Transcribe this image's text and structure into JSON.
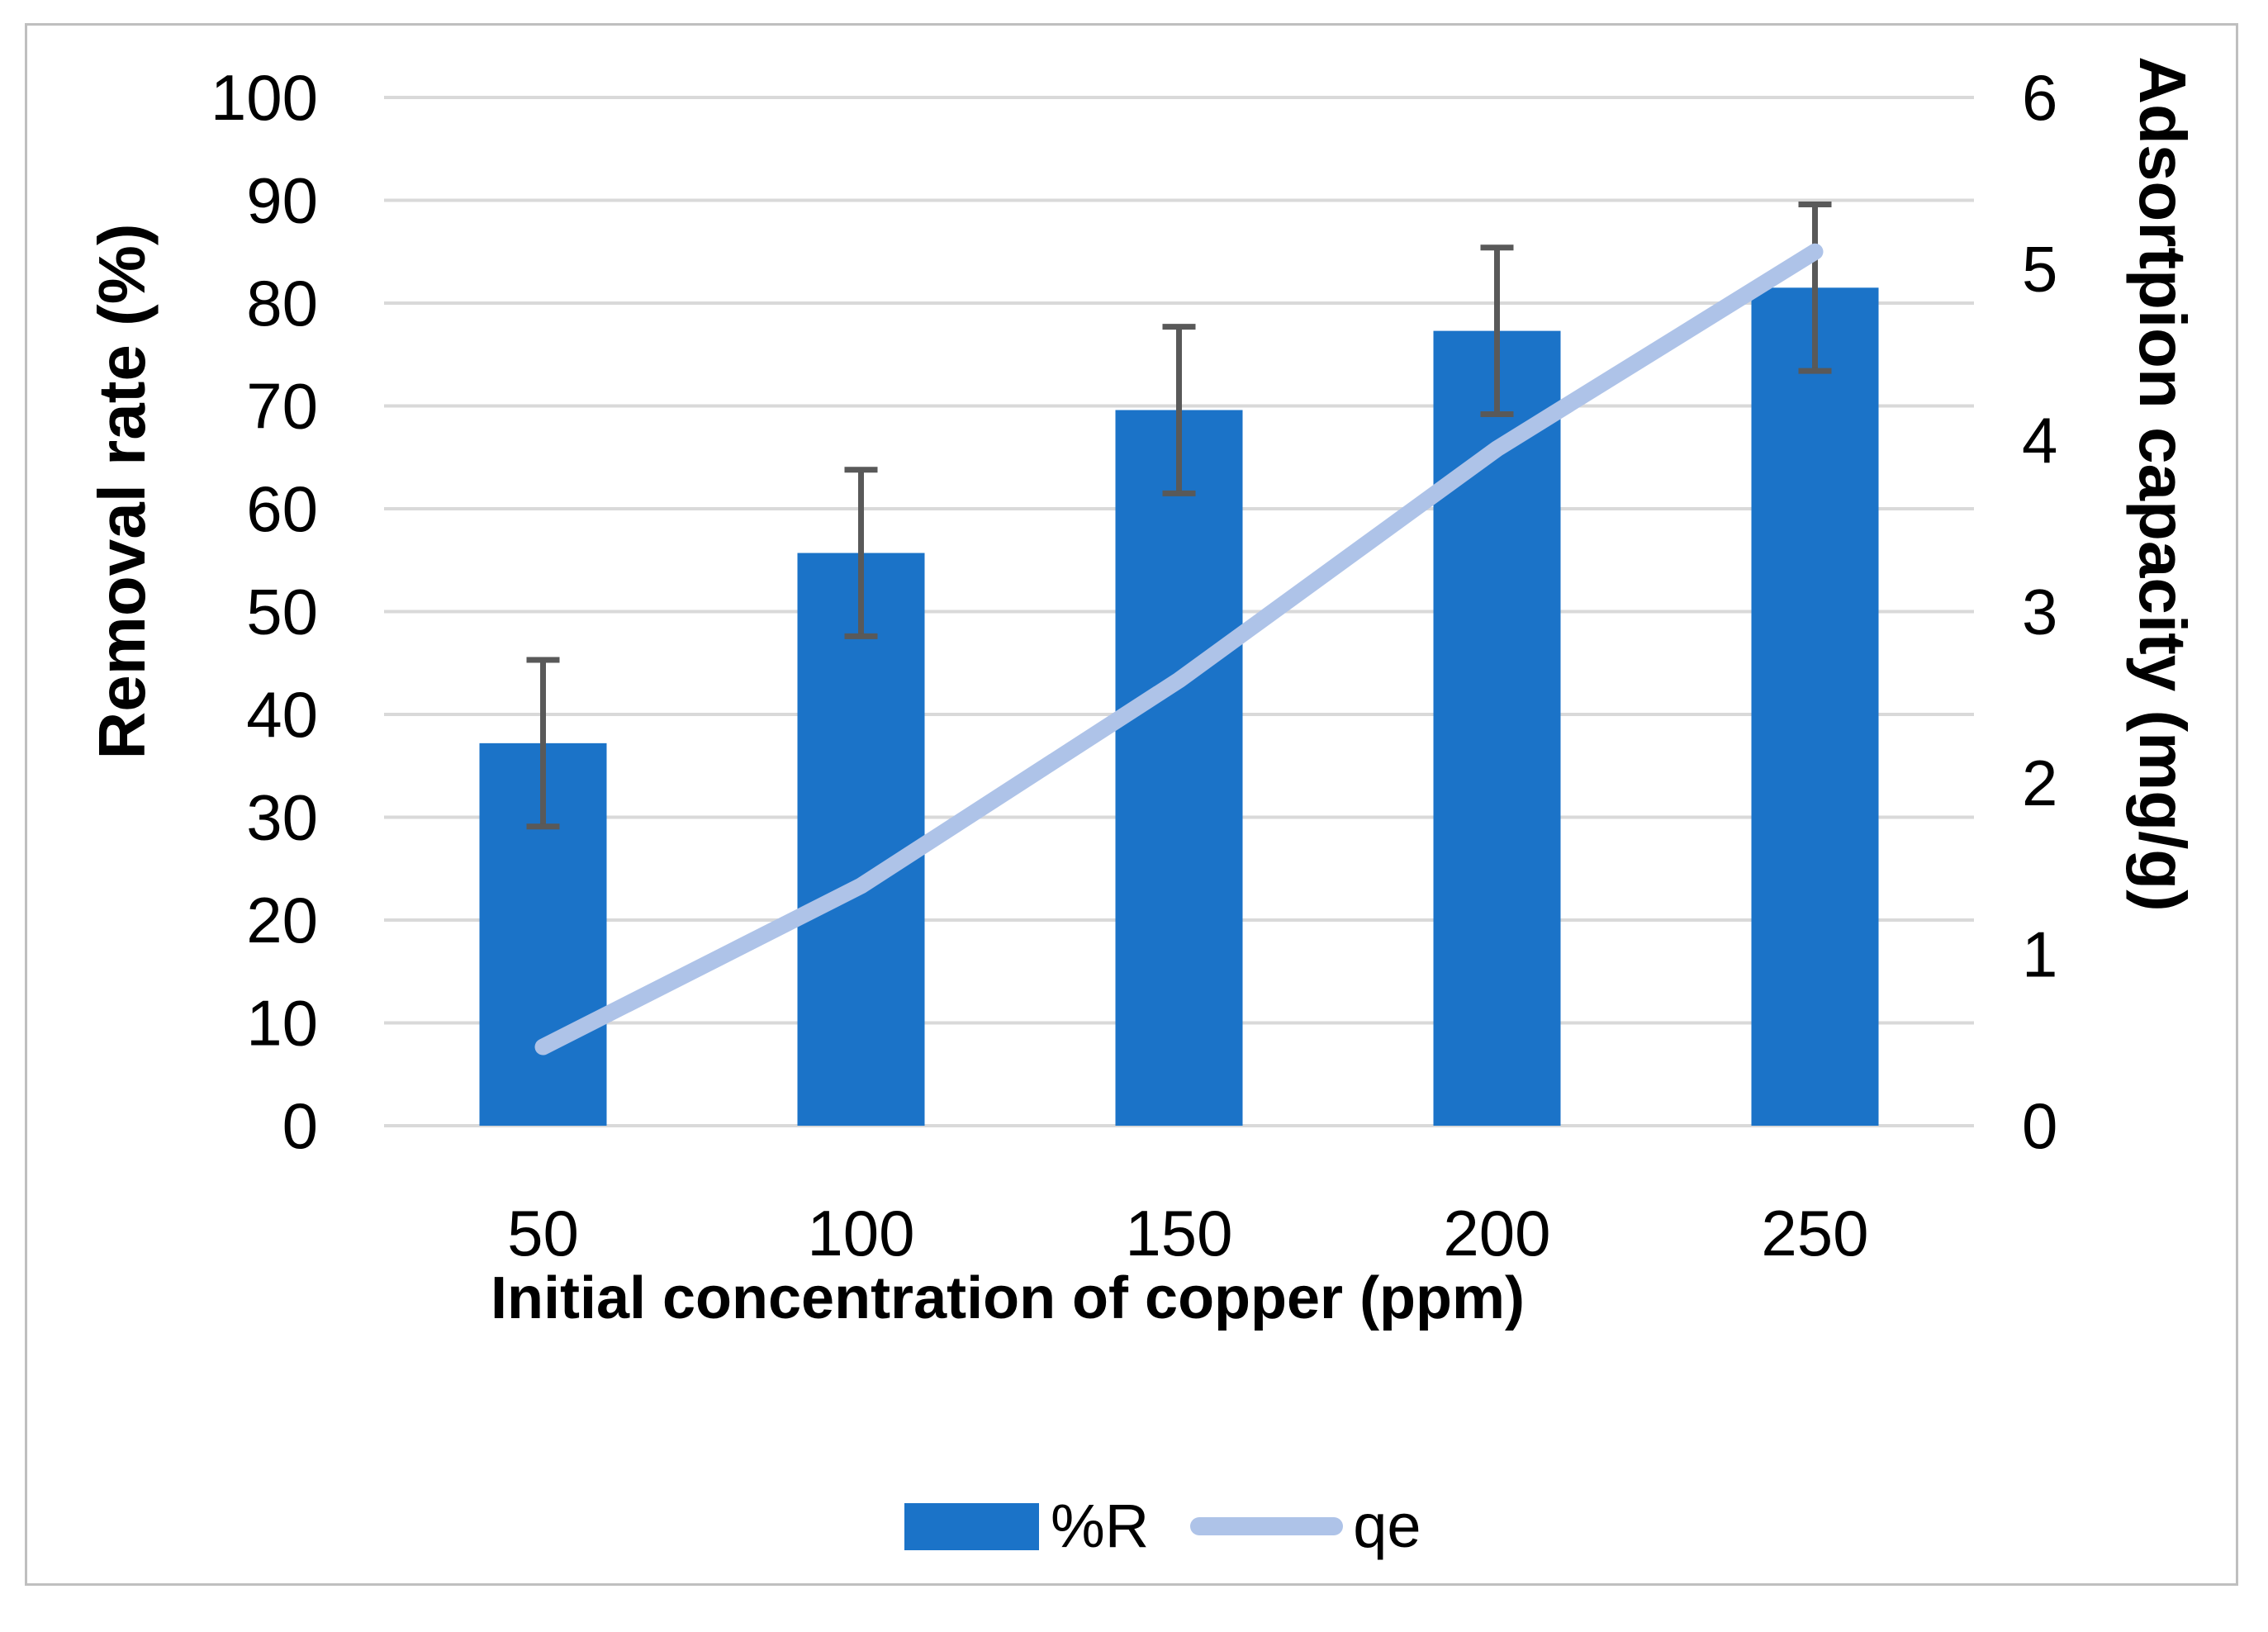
{
  "chart_data": {
    "type": "bar",
    "subtype": "column-and-line-dual-axis",
    "categories": [
      "50",
      "100",
      "150",
      "200",
      "250"
    ],
    "xlabel": "Initial concentration of copper (ppm)",
    "ylabel_left": "Removal rate (%)",
    "ylabel_right": "Adsortpion capacity (mg/g)",
    "left_axis": {
      "min": 0,
      "max": 100,
      "step": 10,
      "ticks": [
        0,
        10,
        20,
        30,
        40,
        50,
        60,
        70,
        80,
        90,
        100
      ]
    },
    "right_axis": {
      "min": 0,
      "max": 6,
      "step": 1,
      "ticks": [
        0,
        1,
        2,
        3,
        4,
        5,
        6
      ]
    },
    "series": [
      {
        "name": "%R",
        "type": "column",
        "axis": "left",
        "values": [
          37.2,
          55.7,
          69.6,
          77.3,
          81.5
        ],
        "error_bars": [
          8.1,
          8.1,
          8.1,
          8.1,
          8.1
        ]
      },
      {
        "name": "qe",
        "type": "line",
        "axis": "right",
        "values": [
          0.46,
          1.4,
          2.6,
          3.95,
          5.1
        ]
      }
    ],
    "grid": true,
    "legend_position": "bottom",
    "colors": {
      "bar": "#1B73C8",
      "line": "#AEC3E8",
      "error": "#595959",
      "gridline": "#D9D9D9",
      "frame": "#BFBFBF",
      "text": "#000000",
      "background": "#FFFFFF"
    }
  },
  "legend": {
    "items": [
      {
        "label": "%R",
        "swatch": "bar"
      },
      {
        "label": "qe",
        "swatch": "line"
      }
    ]
  }
}
